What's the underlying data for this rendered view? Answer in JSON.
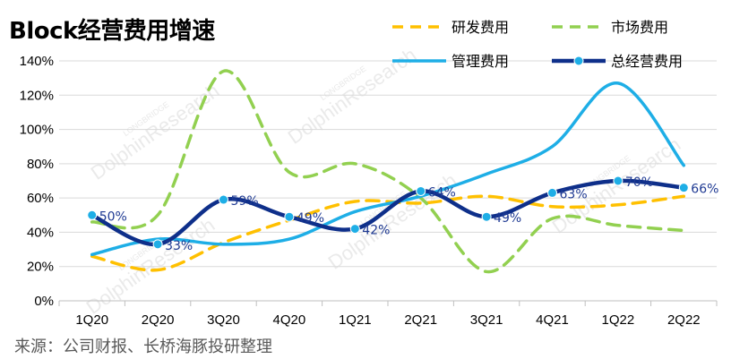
{
  "title": "Block经营费用增速",
  "source": "来源：公司财报、长桥海豚投研整理",
  "watermark": {
    "brand": "LONGBRIDGE",
    "text": "DolphinResearch"
  },
  "chart_data": {
    "type": "line",
    "title": "Block经营费用增速",
    "categories": [
      "1Q20",
      "2Q20",
      "3Q20",
      "4Q20",
      "1Q21",
      "2Q21",
      "3Q21",
      "4Q21",
      "1Q22",
      "2Q22"
    ],
    "yticks": [
      "0%",
      "20%",
      "40%",
      "60%",
      "80%",
      "100%",
      "120%",
      "140%"
    ],
    "ylim": [
      0,
      140
    ],
    "grid": "horizontal",
    "legend_position": "top-right",
    "series": [
      {
        "name": "研发费用",
        "values": [
          26,
          18,
          34,
          47,
          58,
          57,
          61,
          55,
          56,
          61
        ],
        "color": "#ffc000",
        "style": "dashed",
        "markers": false
      },
      {
        "name": "市场费用",
        "values": [
          46,
          50,
          134,
          75,
          80,
          60,
          17,
          48,
          44,
          41
        ],
        "color": "#92d050",
        "style": "dashed",
        "markers": false
      },
      {
        "name": "管理费用",
        "values": [
          27,
          36,
          33,
          36,
          52,
          61,
          74,
          90,
          127,
          79
        ],
        "color": "#1eaee6",
        "style": "solid",
        "markers": false
      },
      {
        "name": "总经营费用",
        "values": [
          50,
          33,
          59,
          49,
          42,
          64,
          49,
          63,
          70,
          66
        ],
        "color": "#0e2f8a",
        "style": "solid",
        "markers": true,
        "marker_color": "#1eaee6"
      }
    ],
    "data_labels": [
      "50%",
      "33%",
      "59%",
      "49%",
      "42%",
      "64%",
      "49%",
      "63%",
      "70%",
      "66%"
    ]
  }
}
